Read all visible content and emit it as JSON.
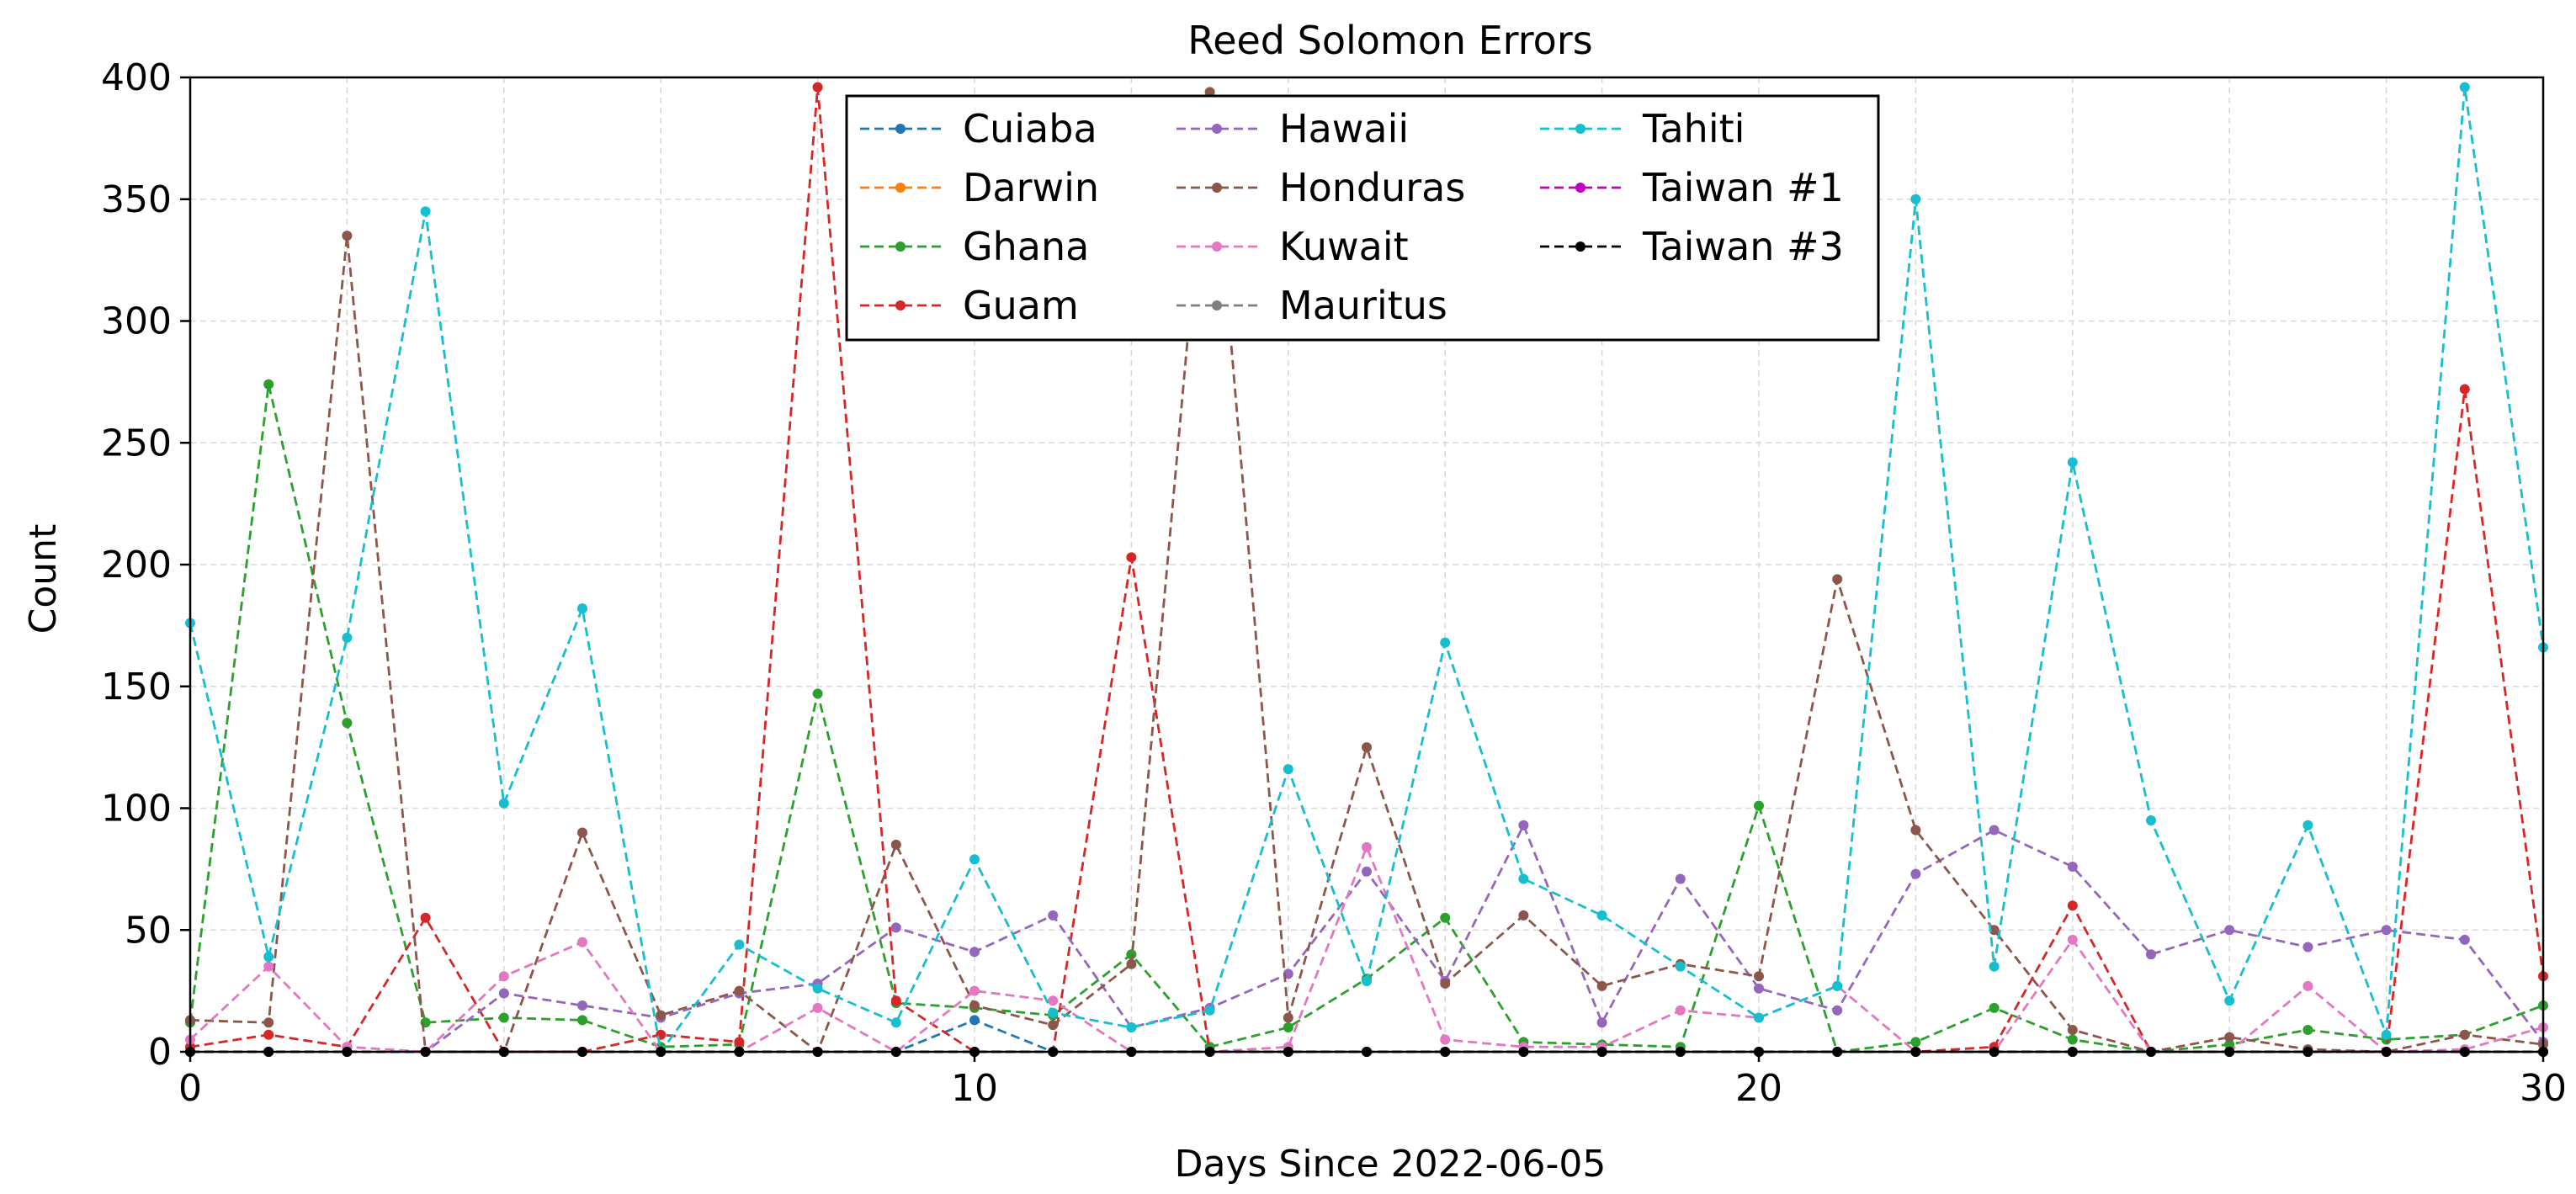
{
  "chart_data": {
    "type": "line",
    "title": "Reed Solomon Errors",
    "xlabel": "Days Since 2022-06-05",
    "ylabel": "Count",
    "xlim": [
      0,
      30
    ],
    "ylim": [
      0,
      400
    ],
    "xticks": [
      0,
      10,
      20,
      30
    ],
    "yticks": [
      0,
      50,
      100,
      150,
      200,
      250,
      300,
      350,
      400
    ],
    "grid": true,
    "legend_position": "top-center",
    "legend_columns": 3,
    "x": [
      0,
      1,
      2,
      3,
      4,
      5,
      6,
      7,
      8,
      9,
      10,
      11,
      12,
      13,
      14,
      15,
      16,
      17,
      18,
      19,
      20,
      21,
      22,
      23,
      24,
      25,
      26,
      27,
      28,
      29,
      30
    ],
    "series": [
      {
        "name": "Cuiaba",
        "color": "#1f77b4",
        "values": [
          0,
          0,
          0,
          0,
          0,
          0,
          0,
          0,
          0,
          0,
          13,
          0,
          0,
          0,
          0,
          0,
          0,
          0,
          0,
          0,
          0,
          0,
          0,
          0,
          0,
          0,
          0,
          0,
          0,
          0,
          0
        ]
      },
      {
        "name": "Darwin",
        "color": "#ff7f0e",
        "values": [
          0,
          0,
          0,
          0,
          0,
          0,
          0,
          0,
          0,
          0,
          0,
          0,
          0,
          0,
          0,
          0,
          0,
          0,
          0,
          0,
          0,
          0,
          0,
          0,
          0,
          0,
          0,
          0,
          0,
          0,
          0
        ]
      },
      {
        "name": "Ghana",
        "color": "#2ca02c",
        "values": [
          12,
          274,
          135,
          12,
          14,
          13,
          2,
          3,
          147,
          20,
          18,
          15,
          40,
          2,
          10,
          30,
          55,
          4,
          3,
          2,
          101,
          0,
          4,
          18,
          5,
          0,
          3,
          9,
          5,
          7,
          19
        ]
      },
      {
        "name": "Guam",
        "color": "#d62728",
        "values": [
          2,
          7,
          2,
          55,
          0,
          0,
          7,
          4,
          396,
          21,
          0,
          0,
          203,
          0,
          0,
          0,
          0,
          0,
          0,
          0,
          0,
          0,
          0,
          2,
          60,
          0,
          0,
          0,
          0,
          272,
          31
        ]
      },
      {
        "name": "Hawaii",
        "color": "#9467bd",
        "values": [
          0,
          0,
          0,
          0,
          24,
          19,
          14,
          24,
          28,
          51,
          41,
          56,
          10,
          18,
          32,
          74,
          29,
          93,
          12,
          71,
          26,
          17,
          73,
          91,
          76,
          40,
          50,
          43,
          50,
          46,
          4
        ]
      },
      {
        "name": "Honduras",
        "color": "#8c564b",
        "values": [
          13,
          12,
          335,
          0,
          0,
          90,
          15,
          25,
          0,
          85,
          19,
          11,
          36,
          394,
          14,
          125,
          28,
          56,
          27,
          36,
          31,
          194,
          91,
          50,
          9,
          0,
          6,
          1,
          0,
          7,
          3
        ]
      },
      {
        "name": "Kuwait",
        "color": "#e377c2",
        "values": [
          5,
          35,
          2,
          0,
          31,
          45,
          0,
          0,
          18,
          0,
          25,
          21,
          0,
          0,
          2,
          84,
          5,
          2,
          2,
          17,
          14,
          27,
          0,
          0,
          46,
          0,
          0,
          27,
          0,
          1,
          10
        ]
      },
      {
        "name": "Mauritus",
        "color": "#7f7f7f",
        "values": [
          0,
          0,
          0,
          0,
          0,
          0,
          0,
          0,
          0,
          0,
          0,
          0,
          0,
          0,
          0,
          0,
          0,
          0,
          0,
          0,
          0,
          0,
          0,
          0,
          0,
          0,
          0,
          0,
          0,
          0,
          0
        ]
      },
      {
        "name": "Tahiti",
        "color": "#17becf",
        "values": [
          176,
          39,
          170,
          345,
          102,
          182,
          0,
          44,
          26,
          12,
          79,
          16,
          10,
          17,
          116,
          29,
          168,
          71,
          56,
          35,
          14,
          27,
          350,
          35,
          242,
          95,
          21,
          93,
          7,
          396,
          166
        ]
      },
      {
        "name": "Taiwan #1",
        "color": "#bf00bf",
        "values": [
          0,
          0,
          0,
          0,
          0,
          0,
          0,
          0,
          0,
          0,
          0,
          0,
          0,
          0,
          0,
          0,
          0,
          0,
          0,
          0,
          0,
          0,
          0,
          0,
          0,
          0,
          0,
          0,
          0,
          0,
          0
        ]
      },
      {
        "name": "Taiwan #3",
        "color": "#000000",
        "values": [
          0,
          0,
          0,
          0,
          0,
          0,
          0,
          0,
          0,
          0,
          0,
          0,
          0,
          0,
          0,
          0,
          0,
          0,
          0,
          0,
          0,
          0,
          0,
          0,
          0,
          0,
          0,
          0,
          0,
          0,
          0
        ]
      }
    ]
  }
}
